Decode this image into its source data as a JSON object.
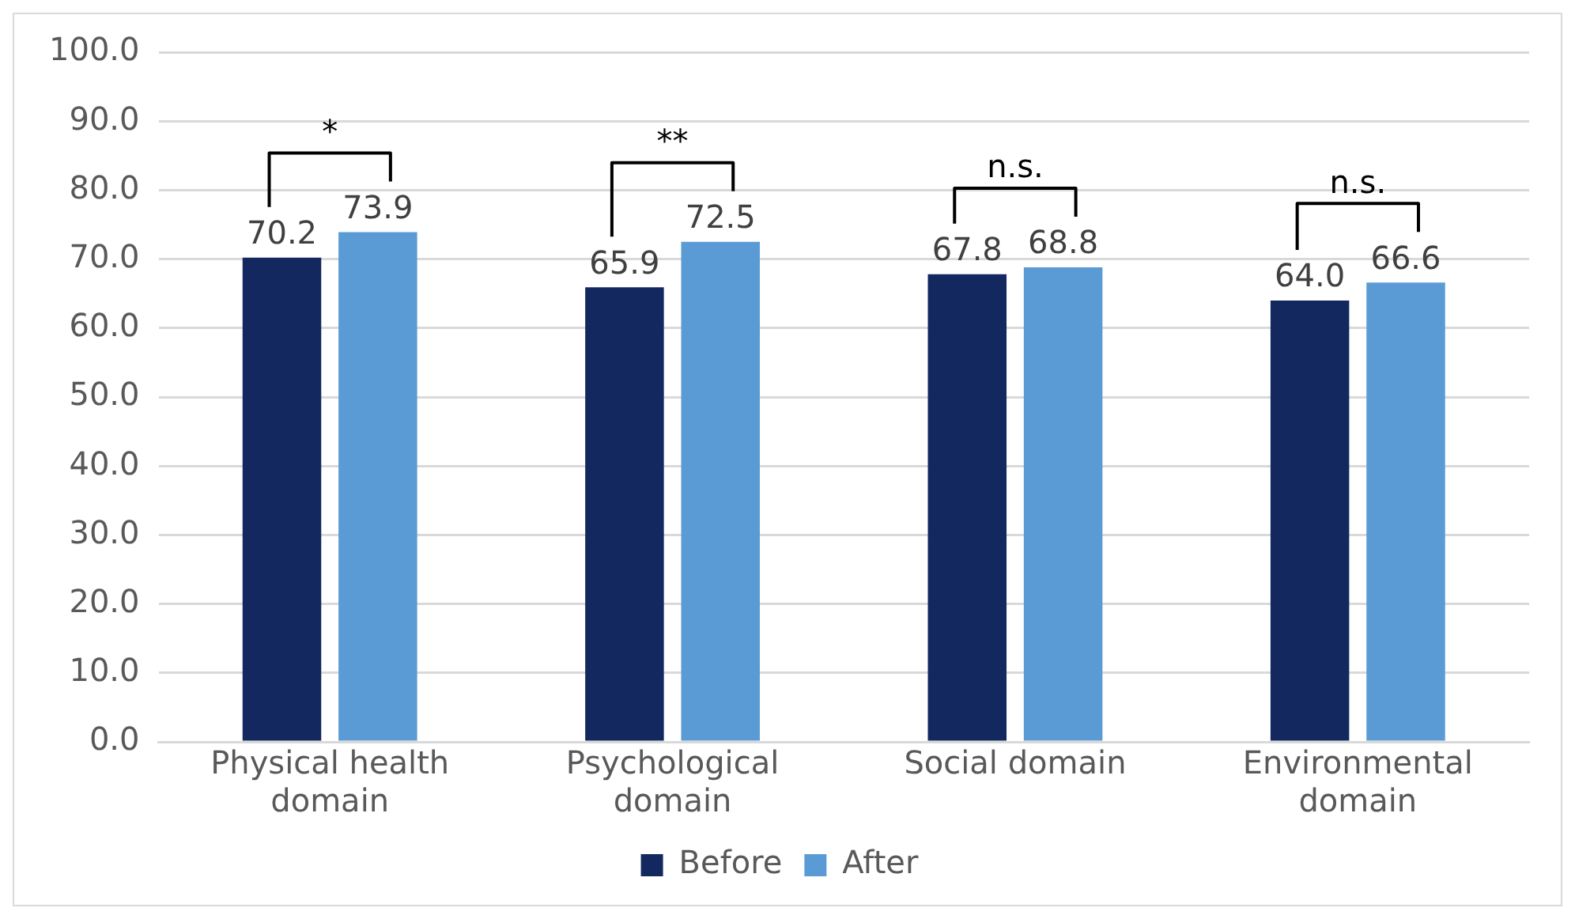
{
  "chart_data": {
    "type": "bar",
    "categories": [
      "Physical health domain",
      "Psychological domain",
      "Social domain",
      "Environmental domain"
    ],
    "series": [
      {
        "name": "Before",
        "color": "#12285f",
        "values": [
          70.2,
          65.9,
          67.8,
          64.0
        ],
        "value_labels": [
          "70.2",
          "65.9",
          "67.8",
          "64.0"
        ]
      },
      {
        "name": "After",
        "color": "#5b9bd5",
        "values": [
          73.9,
          72.5,
          68.8,
          66.6
        ],
        "value_labels": [
          "73.9",
          "72.5",
          "68.8",
          "66.6"
        ]
      }
    ],
    "ylim": [
      0,
      100
    ],
    "yticks": [
      {
        "value": 0,
        "label": "0.0"
      },
      {
        "value": 10,
        "label": "10.0"
      },
      {
        "value": 20,
        "label": "20.0"
      },
      {
        "value": 30,
        "label": "30.0"
      },
      {
        "value": 40,
        "label": "40.0"
      },
      {
        "value": 50,
        "label": "50.0"
      },
      {
        "value": 60,
        "label": "60.0"
      },
      {
        "value": 70,
        "label": "70.0"
      },
      {
        "value": 80,
        "label": "80.0"
      },
      {
        "value": 90,
        "label": "90.0"
      },
      {
        "value": 100,
        "label": "100.0"
      }
    ],
    "grid": "y",
    "legend": "bottom",
    "annotations": [
      "*",
      "**",
      "n.s.",
      "n.s."
    ]
  }
}
